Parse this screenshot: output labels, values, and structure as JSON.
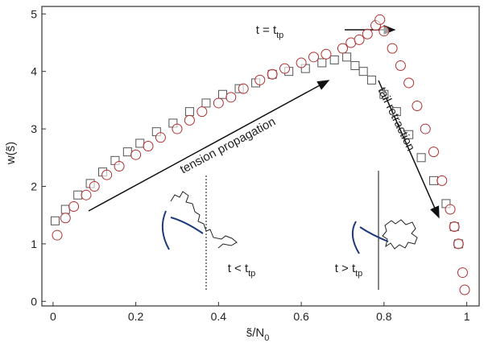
{
  "chart_data": {
    "type": "scatter",
    "xlabel": {
      "text": "s̃/N",
      "sub": "0"
    },
    "ylabel": "w(s̃)",
    "xlim": [
      -0.027,
      1.03
    ],
    "ylim": [
      -0.08,
      5.13
    ],
    "xticks": [
      0,
      0.2,
      0.4,
      0.6,
      0.8,
      1
    ],
    "yticks": [
      0,
      1,
      2,
      3,
      4,
      5
    ],
    "series": [
      {
        "marker": "square",
        "color": "#555555",
        "x": [
          0.005,
          0.03,
          0.06,
          0.09,
          0.12,
          0.15,
          0.18,
          0.21,
          0.25,
          0.29,
          0.33,
          0.37,
          0.41,
          0.45,
          0.49,
          0.53,
          0.57,
          0.61,
          0.65,
          0.68,
          0.71,
          0.73,
          0.75,
          0.77,
          0.8,
          0.83,
          0.86,
          0.89,
          0.92,
          0.95,
          0.97,
          0.98
        ],
        "values": [
          1.4,
          1.6,
          1.85,
          2.05,
          2.25,
          2.45,
          2.6,
          2.75,
          2.95,
          3.1,
          3.3,
          3.45,
          3.6,
          3.7,
          3.8,
          3.95,
          4.0,
          4.05,
          4.15,
          4.2,
          4.25,
          4.1,
          4.0,
          3.85,
          3.6,
          3.3,
          2.9,
          2.5,
          2.1,
          1.7,
          1.3,
          1.0
        ]
      },
      {
        "marker": "circle",
        "color": "#b03030",
        "x": [
          0.01,
          0.03,
          0.05,
          0.08,
          0.1,
          0.13,
          0.16,
          0.2,
          0.23,
          0.26,
          0.3,
          0.33,
          0.36,
          0.4,
          0.43,
          0.46,
          0.5,
          0.53,
          0.56,
          0.6,
          0.63,
          0.66,
          0.7,
          0.72,
          0.74,
          0.76,
          0.78,
          0.79,
          0.8,
          0.82,
          0.84,
          0.86,
          0.88,
          0.9,
          0.92,
          0.94,
          0.96,
          0.97,
          0.98,
          0.99,
          0.995
        ],
        "values": [
          1.15,
          1.45,
          1.65,
          1.85,
          2.0,
          2.2,
          2.35,
          2.55,
          2.7,
          2.85,
          3.0,
          3.15,
          3.3,
          3.45,
          3.55,
          3.7,
          3.85,
          3.95,
          4.05,
          4.15,
          4.25,
          4.3,
          4.4,
          4.5,
          4.55,
          4.65,
          4.8,
          4.9,
          4.7,
          4.4,
          4.1,
          3.8,
          3.4,
          3.0,
          2.6,
          2.1,
          1.6,
          1.3,
          1.0,
          0.5,
          0.2
        ]
      }
    ],
    "annotations": [
      {
        "text": "t = t",
        "sub": "tp"
      },
      {
        "text": "tension propagation"
      },
      {
        "text": "tail retraction"
      },
      {
        "text": "t < t",
        "sub": "tp"
      },
      {
        "text": "t > t",
        "sub": "tp"
      }
    ]
  }
}
